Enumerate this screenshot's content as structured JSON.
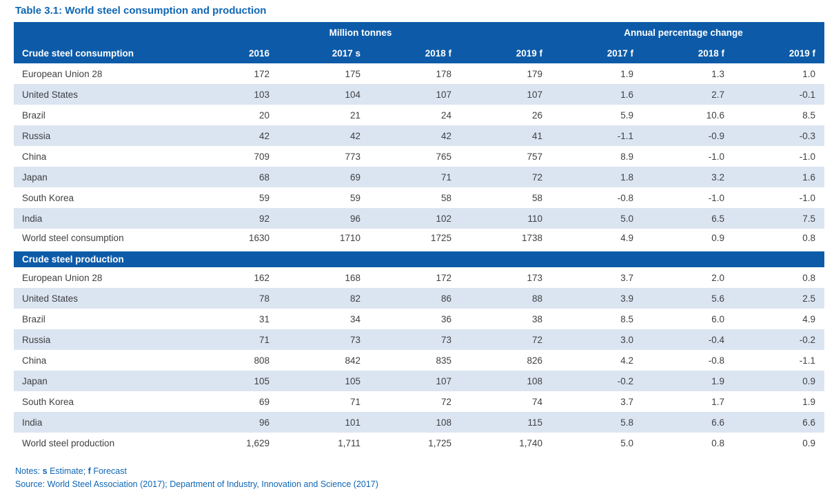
{
  "title": "Table 3.1: World steel consumption and production",
  "colors": {
    "header_blue": "#0d5ba8",
    "row_alt_blue": "#dbe5f1",
    "title_blue": "#0f66b4",
    "data_text": "#3f4043"
  },
  "table": {
    "group_headers": [
      {
        "label": "Million tonnes",
        "span": 4
      },
      {
        "label": "Annual percentage change",
        "span": 3
      }
    ],
    "column_headers": [
      "2016",
      "2017 s",
      "2018 f",
      "2019 f",
      "2017 f",
      "2018 f",
      "2019 f"
    ],
    "sections": [
      {
        "header": "Crude steel consumption",
        "rows": [
          {
            "label": "European Union 28",
            "values": [
              "172",
              "175",
              "178",
              "179",
              "1.9",
              "1.3",
              "1.0"
            ]
          },
          {
            "label": "United States",
            "values": [
              "103",
              "104",
              "107",
              "107",
              "1.6",
              "2.7",
              "-0.1"
            ]
          },
          {
            "label": "Brazil",
            "values": [
              "20",
              "21",
              "24",
              "26",
              "5.9",
              "10.6",
              "8.5"
            ]
          },
          {
            "label": "Russia",
            "values": [
              "42",
              "42",
              "42",
              "41",
              "-1.1",
              "-0.9",
              "-0.3"
            ]
          },
          {
            "label": "China",
            "values": [
              "709",
              "773",
              "765",
              "757",
              "8.9",
              "-1.0",
              "-1.0"
            ]
          },
          {
            "label": "Japan",
            "values": [
              "68",
              "69",
              "71",
              "72",
              "1.8",
              "3.2",
              "1.6"
            ]
          },
          {
            "label": "South Korea",
            "values": [
              "59",
              "59",
              "58",
              "58",
              "-0.8",
              "-1.0",
              "-1.0"
            ]
          },
          {
            "label": "India",
            "values": [
              "92",
              "96",
              "102",
              "110",
              "5.0",
              "6.5",
              "7.5"
            ]
          },
          {
            "label": "World steel consumption",
            "values": [
              "1630",
              "1710",
              "1725",
              "1738",
              "4.9",
              "0.9",
              "0.8"
            ]
          }
        ]
      },
      {
        "header": "Crude steel production",
        "rows": [
          {
            "label": "European Union 28",
            "values": [
              "162",
              "168",
              "172",
              "173",
              "3.7",
              "2.0",
              "0.8"
            ]
          },
          {
            "label": "United States",
            "values": [
              "78",
              "82",
              "86",
              "88",
              "3.9",
              "5.6",
              "2.5"
            ]
          },
          {
            "label": "Brazil",
            "values": [
              "31",
              "34",
              "36",
              "38",
              "8.5",
              "6.0",
              "4.9"
            ]
          },
          {
            "label": "Russia",
            "values": [
              "71",
              "73",
              "73",
              "72",
              "3.0",
              "-0.4",
              "-0.2"
            ]
          },
          {
            "label": "China",
            "values": [
              "808",
              "842",
              "835",
              "826",
              "4.2",
              "-0.8",
              "-1.1"
            ]
          },
          {
            "label": "Japan",
            "values": [
              "105",
              "105",
              "107",
              "108",
              "-0.2",
              "1.9",
              "0.9"
            ]
          },
          {
            "label": "South Korea",
            "values": [
              "69",
              "71",
              "72",
              "74",
              "3.7",
              "1.7",
              "1.9"
            ]
          },
          {
            "label": "India",
            "values": [
              "96",
              "101",
              "108",
              "115",
              "5.8",
              "6.6",
              "6.6"
            ]
          },
          {
            "label": "World steel production",
            "values": [
              "1,629",
              "1,711",
              "1,725",
              "1,740",
              "5.0",
              "0.8",
              "0.9"
            ]
          }
        ]
      }
    ]
  },
  "notes": {
    "label": "Notes:",
    "s_key": "s",
    "s_text": "Estimate;",
    "f_key": "f",
    "f_text": "Forecast"
  },
  "source": {
    "text": "Source: World Steel Association (2017); Department of Industry, Innovation and Science (2017)"
  }
}
